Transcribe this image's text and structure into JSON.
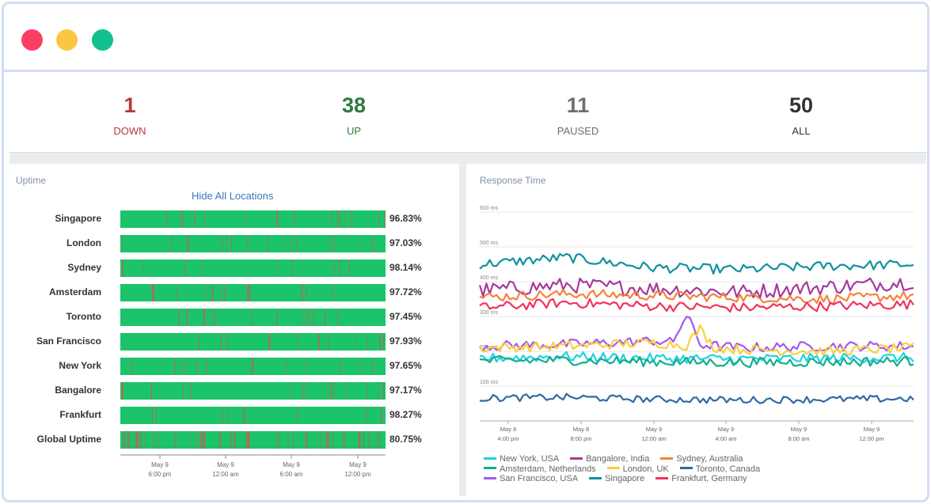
{
  "window": {
    "dots": [
      {
        "name": "close",
        "color": "#fb3f63"
      },
      {
        "name": "minimize",
        "color": "#fdc642"
      },
      {
        "name": "maximize",
        "color": "#12c08e"
      }
    ]
  },
  "stats": [
    {
      "value": "1",
      "label": "DOWN",
      "color": "#b53a3a"
    },
    {
      "value": "38",
      "label": "UP",
      "color": "#2e7a3c"
    },
    {
      "value": "11",
      "label": "PAUSED",
      "color": "#6f6f6f"
    },
    {
      "value": "50",
      "label": "ALL",
      "color": "#333333"
    }
  ],
  "uptime": {
    "title": "Uptime",
    "hide_link": "Hide All Locations",
    "rows": [
      {
        "label": "Singapore",
        "pct": "96.83%"
      },
      {
        "label": "London",
        "pct": "97.03%"
      },
      {
        "label": "Sydney",
        "pct": "98.14%"
      },
      {
        "label": "Amsterdam",
        "pct": "97.72%"
      },
      {
        "label": "Toronto",
        "pct": "97.45%"
      },
      {
        "label": "San Francisco",
        "pct": "97.93%"
      },
      {
        "label": "New York",
        "pct": "97.65%"
      },
      {
        "label": "Bangalore",
        "pct": "97.17%"
      },
      {
        "label": "Frankfurt",
        "pct": "98.27%"
      },
      {
        "label": "Global Uptime",
        "pct": "80.75%"
      }
    ],
    "x_ticks": [
      {
        "date": "May 9",
        "time": "6:00 pm"
      },
      {
        "date": "May 9",
        "time": "12:00 am"
      },
      {
        "date": "May 9",
        "time": "6:00 am"
      },
      {
        "date": "May 9",
        "time": "12:00 pm"
      }
    ],
    "colors": {
      "up": "#1bc46a",
      "down": "#d9534f"
    }
  },
  "response": {
    "title": "Response Time",
    "y_ticks": [
      "600 ms",
      "500 ms",
      "400 ms",
      "300 ms",
      "200 ms",
      "100 ms"
    ],
    "x_ticks": [
      {
        "date": "May 8",
        "time": "4:00 pm"
      },
      {
        "date": "May 8",
        "time": "8:00 pm"
      },
      {
        "date": "May 9",
        "time": "12:00 am"
      },
      {
        "date": "May 9",
        "time": "4:00 am"
      },
      {
        "date": "May 9",
        "time": "8:00 am"
      },
      {
        "date": "May 9",
        "time": "12:00 pm"
      }
    ],
    "legend_rows": [
      [
        {
          "name": "New York, USA",
          "color": "#1fd1e6"
        },
        {
          "name": "Bangalore, India",
          "color": "#a6399b"
        },
        {
          "name": "Sydney, Australia",
          "color": "#f5833c"
        }
      ],
      [
        {
          "name": "Amsterdam, Netherlands",
          "color": "#13ae8c"
        },
        {
          "name": "London, UK",
          "color": "#fbcf3b"
        },
        {
          "name": "Toronto, Canada",
          "color": "#2f6aa5"
        }
      ],
      [
        {
          "name": "San Francisco, USA",
          "color": "#a259f2"
        },
        {
          "name": "Singapore",
          "color": "#10919f"
        },
        {
          "name": "Frankfurt, Germany",
          "color": "#f2335e"
        }
      ]
    ]
  },
  "chart_data": {
    "type": "line",
    "title": "Response Time",
    "ylabel": "",
    "ylim": [
      0,
      600
    ],
    "x": [
      "May 8 4:00 pm",
      "May 8 8:00 pm",
      "May 9 12:00 am",
      "May 9 4:00 am",
      "May 9 8:00 am",
      "May 9 12:00 pm"
    ],
    "series": [
      {
        "name": "Singapore",
        "color": "#10919f",
        "values": [
          450,
          470,
          440,
          435,
          445,
          450
        ]
      },
      {
        "name": "Bangalore, India",
        "color": "#a6399b",
        "values": [
          375,
          390,
          380,
          370,
          385,
          400
        ]
      },
      {
        "name": "Sydney, Australia",
        "color": "#f5833c",
        "values": [
          355,
          365,
          360,
          355,
          350,
          360
        ]
      },
      {
        "name": "Frankfurt, Germany",
        "color": "#f2335e",
        "values": [
          325,
          340,
          330,
          325,
          330,
          335
        ]
      },
      {
        "name": "San Francisco, USA",
        "color": "#a259f2",
        "values": [
          215,
          220,
          230,
          210,
          215,
          215
        ]
      },
      {
        "name": "London, UK",
        "color": "#fbcf3b",
        "values": [
          210,
          215,
          225,
          205,
          200,
          210
        ]
      },
      {
        "name": "New York, USA",
        "color": "#1fd1e6",
        "values": [
          180,
          185,
          180,
          178,
          180,
          182
        ]
      },
      {
        "name": "Amsterdam, Netherlands",
        "color": "#13ae8c",
        "values": [
          172,
          175,
          170,
          168,
          170,
          172
        ]
      },
      {
        "name": "Toronto, Canada",
        "color": "#2f6aa5",
        "values": [
          65,
          68,
          62,
          60,
          62,
          64
        ]
      }
    ]
  }
}
